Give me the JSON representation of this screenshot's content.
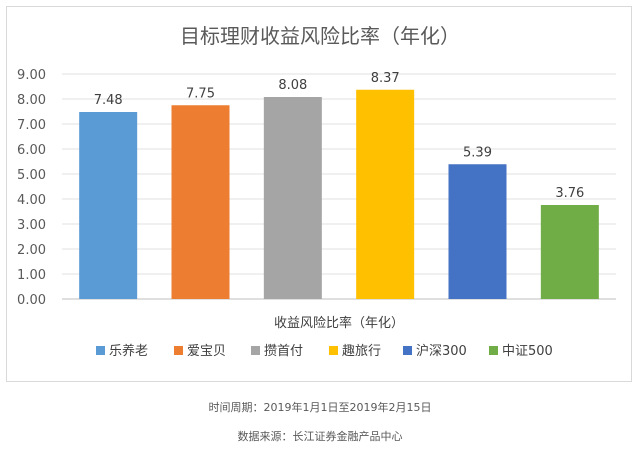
{
  "chart_data": {
    "type": "bar",
    "title": "目标理财收益风险比率（年化）",
    "xlabel": "收益风险比率（年化）",
    "ylabel": "",
    "ylim": [
      0,
      9
    ],
    "ytick_step": 1,
    "ytick_labels": [
      "0.00",
      "1.00",
      "2.00",
      "3.00",
      "4.00",
      "5.00",
      "6.00",
      "7.00",
      "8.00",
      "9.00"
    ],
    "grid": true,
    "legend_position": "bottom",
    "series": [
      {
        "name": "乐养老",
        "value": 7.48,
        "label": "7.48",
        "color": "#5b9bd5"
      },
      {
        "name": "爱宝贝",
        "value": 7.75,
        "label": "7.75",
        "color": "#ed7d31"
      },
      {
        "name": "攒首付",
        "value": 8.08,
        "label": "8.08",
        "color": "#a5a5a5"
      },
      {
        "name": "趣旅行",
        "value": 8.37,
        "label": "8.37",
        "color": "#ffc000"
      },
      {
        "name": "沪深300",
        "value": 5.39,
        "label": "5.39",
        "color": "#4472c4"
      },
      {
        "name": "中证500",
        "value": 3.76,
        "label": "3.76",
        "color": "#70ad47"
      }
    ]
  },
  "footnotes": {
    "period": "时间周期：2019年1月1日至2019年2月15日",
    "source": "数据来源：长江证券金融产品中心"
  }
}
